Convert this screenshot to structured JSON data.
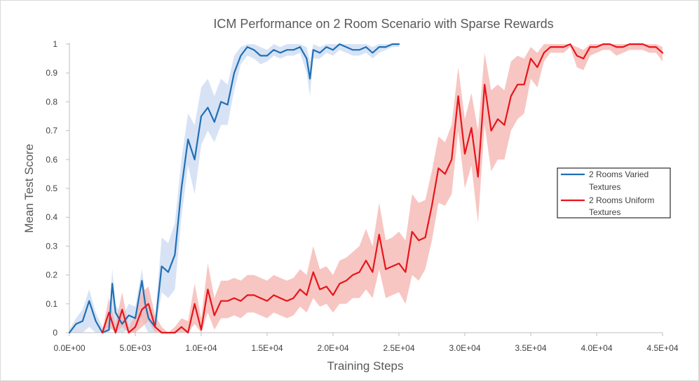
{
  "chart_data": {
    "type": "line",
    "title": "ICM Performance on 2 Room Scenario with Sparse Rewards",
    "xlabel": "Training Steps",
    "ylabel": "Mean Test Score",
    "xlim": [
      0,
      45000
    ],
    "ylim": [
      0,
      1
    ],
    "xticks": [
      0,
      5000,
      10000,
      15000,
      20000,
      25000,
      30000,
      35000,
      40000,
      45000
    ],
    "xtick_labels": [
      "0.0E+00",
      "5.0E+03",
      "1.0E+04",
      "1.5E+04",
      "2.0E+04",
      "2.5E+04",
      "3.0E+04",
      "3.5E+04",
      "4.0E+04",
      "4.5E+04"
    ],
    "yticks": [
      0,
      0.1,
      0.2,
      0.3,
      0.4,
      0.5,
      0.6,
      0.7,
      0.8,
      0.9,
      1
    ],
    "ytick_labels": [
      "0",
      "0.1",
      "0.2",
      "0.3",
      "0.4",
      "0.5",
      "0.6",
      "0.7",
      "0.8",
      "0.9",
      "1"
    ],
    "grid": false,
    "legend_position": "right",
    "series": [
      {
        "name": "2 Rooms Varied Textures",
        "color": "#1f6fb5",
        "band_color": "#c9d9f2",
        "x": [
          0,
          500,
          1000,
          1500,
          2000,
          2500,
          3000,
          3250,
          3500,
          4000,
          4500,
          5000,
          5500,
          5750,
          6000,
          6500,
          7000,
          7500,
          8000,
          8500,
          9000,
          9500,
          10000,
          10500,
          11000,
          11500,
          12000,
          12500,
          13000,
          13500,
          14000,
          14500,
          15000,
          15500,
          16000,
          16500,
          17000,
          17500,
          18000,
          18250,
          18500,
          19000,
          19500,
          20000,
          20500,
          21000,
          21500,
          22000,
          22500,
          23000,
          23500,
          24000,
          24500,
          25000
        ],
        "y": [
          0,
          0.03,
          0.04,
          0.11,
          0.04,
          0,
          0.01,
          0.17,
          0.07,
          0.03,
          0.06,
          0.05,
          0.18,
          0.1,
          0.05,
          0.02,
          0.23,
          0.21,
          0.27,
          0.5,
          0.67,
          0.6,
          0.75,
          0.78,
          0.73,
          0.8,
          0.79,
          0.9,
          0.96,
          0.99,
          0.98,
          0.96,
          0.96,
          0.98,
          0.97,
          0.98,
          0.98,
          0.99,
          0.95,
          0.88,
          0.98,
          0.97,
          0.99,
          0.98,
          1,
          0.99,
          0.98,
          0.98,
          0.99,
          0.97,
          0.99,
          0.99,
          1,
          1
        ],
        "lower": [
          0,
          0,
          0,
          0.02,
          0,
          0,
          0,
          0.02,
          0,
          0,
          0.01,
          0,
          0.05,
          0.02,
          0,
          0,
          0.14,
          0.12,
          0.15,
          0.4,
          0.58,
          0.48,
          0.65,
          0.7,
          0.66,
          0.72,
          0.72,
          0.84,
          0.93,
          0.96,
          0.95,
          0.93,
          0.94,
          0.96,
          0.95,
          0.96,
          0.96,
          0.97,
          0.9,
          0.82,
          0.95,
          0.95,
          0.97,
          0.96,
          0.98,
          0.97,
          0.96,
          0.96,
          0.97,
          0.95,
          0.97,
          0.98,
          0.99,
          0.99
        ],
        "upper": [
          0.01,
          0.05,
          0.08,
          0.15,
          0.07,
          0.02,
          0.04,
          0.22,
          0.1,
          0.05,
          0.1,
          0.09,
          0.22,
          0.14,
          0.1,
          0.05,
          0.33,
          0.31,
          0.38,
          0.6,
          0.76,
          0.72,
          0.85,
          0.88,
          0.82,
          0.88,
          0.86,
          0.96,
          0.99,
          1,
          1,
          0.99,
          0.98,
          1,
          0.99,
          1,
          1,
          1,
          0.99,
          0.94,
          1,
          0.99,
          1,
          1,
          1,
          1,
          1,
          1,
          1,
          0.99,
          1,
          1,
          1,
          1
        ]
      },
      {
        "name": "2 Rooms Uniform Textures",
        "color": "#e8141b",
        "band_color": "#f4b3ad",
        "x": [
          2500,
          3000,
          3500,
          4000,
          4500,
          5000,
          5500,
          6000,
          6500,
          7000,
          7500,
          8000,
          8500,
          9000,
          9500,
          10000,
          10500,
          11000,
          11500,
          12000,
          12500,
          13000,
          13500,
          14000,
          14500,
          15000,
          15500,
          16000,
          16500,
          17000,
          17500,
          18000,
          18500,
          19000,
          19500,
          20000,
          20500,
          21000,
          21500,
          22000,
          22500,
          23000,
          23500,
          24000,
          24500,
          25000,
          25500,
          26000,
          26500,
          27000,
          27500,
          28000,
          28500,
          29000,
          29500,
          30000,
          30500,
          31000,
          31500,
          32000,
          32500,
          33000,
          33500,
          34000,
          34500,
          35000,
          35500,
          36000,
          36500,
          37000,
          37500,
          38000,
          38500,
          39000,
          39500,
          40000,
          40500,
          41000,
          41500,
          42000,
          42500,
          43000,
          43500,
          44000,
          44500,
          45000
        ],
        "y": [
          0,
          0.07,
          0,
          0.08,
          0,
          0.02,
          0.08,
          0.1,
          0.02,
          0,
          0,
          0,
          0.02,
          0,
          0.1,
          0.01,
          0.15,
          0.06,
          0.11,
          0.11,
          0.12,
          0.11,
          0.13,
          0.13,
          0.12,
          0.11,
          0.13,
          0.12,
          0.11,
          0.12,
          0.15,
          0.13,
          0.21,
          0.15,
          0.16,
          0.13,
          0.17,
          0.18,
          0.2,
          0.21,
          0.25,
          0.21,
          0.34,
          0.22,
          0.23,
          0.24,
          0.21,
          0.35,
          0.32,
          0.33,
          0.44,
          0.57,
          0.55,
          0.6,
          0.82,
          0.62,
          0.71,
          0.54,
          0.86,
          0.7,
          0.74,
          0.72,
          0.82,
          0.86,
          0.86,
          0.95,
          0.92,
          0.97,
          0.99,
          0.99,
          0.99,
          1,
          0.96,
          0.95,
          0.99,
          0.99,
          1,
          1,
          0.99,
          0.99,
          1,
          1,
          1,
          0.99,
          0.99,
          0.97
        ],
        "lower": [
          0,
          0.02,
          0,
          0.02,
          0,
          0,
          0.02,
          0.04,
          0,
          0,
          0,
          0,
          0,
          0,
          0.03,
          0,
          0.07,
          0.01,
          0.05,
          0.05,
          0.06,
          0.05,
          0.07,
          0.07,
          0.06,
          0.05,
          0.07,
          0.06,
          0.05,
          0.06,
          0.09,
          0.07,
          0.12,
          0.09,
          0.1,
          0.07,
          0.1,
          0.1,
          0.12,
          0.12,
          0.15,
          0.12,
          0.22,
          0.12,
          0.13,
          0.14,
          0.1,
          0.2,
          0.18,
          0.22,
          0.32,
          0.45,
          0.44,
          0.48,
          0.7,
          0.5,
          0.58,
          0.38,
          0.72,
          0.56,
          0.6,
          0.6,
          0.7,
          0.74,
          0.76,
          0.88,
          0.85,
          0.94,
          0.97,
          0.97,
          0.97,
          0.99,
          0.92,
          0.91,
          0.96,
          0.97,
          0.98,
          0.98,
          0.96,
          0.97,
          0.98,
          0.98,
          0.98,
          0.97,
          0.97,
          0.94
        ],
        "upper": [
          0.01,
          0.12,
          0.03,
          0.14,
          0.02,
          0.06,
          0.14,
          0.16,
          0.06,
          0.02,
          0,
          0.02,
          0.05,
          0.04,
          0.17,
          0.05,
          0.24,
          0.12,
          0.18,
          0.18,
          0.19,
          0.18,
          0.2,
          0.2,
          0.19,
          0.18,
          0.2,
          0.19,
          0.18,
          0.19,
          0.22,
          0.2,
          0.3,
          0.22,
          0.23,
          0.2,
          0.25,
          0.26,
          0.28,
          0.3,
          0.36,
          0.3,
          0.45,
          0.32,
          0.33,
          0.35,
          0.32,
          0.48,
          0.45,
          0.46,
          0.56,
          0.68,
          0.66,
          0.72,
          0.92,
          0.74,
          0.83,
          0.7,
          0.97,
          0.84,
          0.86,
          0.84,
          0.94,
          0.96,
          0.95,
          0.99,
          0.97,
          1,
          1,
          1,
          1,
          1,
          0.99,
          0.98,
          1,
          1,
          1,
          1,
          1,
          1,
          1,
          1,
          1,
          1,
          1,
          0.99
        ]
      }
    ]
  },
  "legend": {
    "items": [
      {
        "line1": "2 Rooms Varied",
        "line2": "Textures",
        "color": "#1f6fb5"
      },
      {
        "line1": "2 Rooms Uniform",
        "line2": "Textures",
        "color": "#e8141b"
      }
    ]
  }
}
